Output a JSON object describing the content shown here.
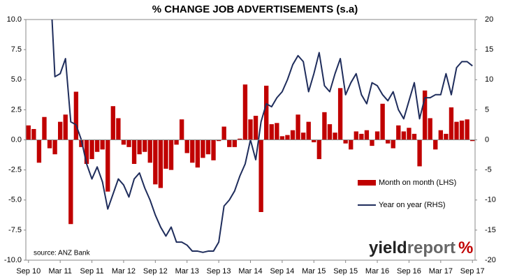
{
  "chart_data": {
    "type": "bar-line",
    "title": "% CHANGE JOB ADVERTISEMENTS (s.a)",
    "source": "source: ANZ Bank",
    "logo": {
      "main": "yield",
      "accent": "report",
      "symbol": "%"
    },
    "categories": [
      "Sep 10",
      null,
      null,
      null,
      null,
      null,
      "Mar 11",
      null,
      null,
      null,
      null,
      null,
      "Sep 11",
      null,
      null,
      null,
      null,
      null,
      "Mar 12",
      null,
      null,
      null,
      null,
      null,
      "Sep 12",
      null,
      null,
      null,
      null,
      null,
      "Mar 13",
      null,
      null,
      null,
      null,
      null,
      "Sep 13",
      null,
      null,
      null,
      null,
      null,
      "Mar 14",
      null,
      null,
      null,
      null,
      null,
      "Sep 14",
      null,
      null,
      null,
      null,
      null,
      "Mar 15",
      null,
      null,
      null,
      null,
      null,
      "Sep 15",
      null,
      null,
      null,
      null,
      null,
      "Mar 16",
      null,
      null,
      null,
      null,
      null,
      "Sep 16",
      null,
      null,
      null,
      null,
      null,
      "Mar 17",
      null,
      null,
      null,
      null,
      null,
      "Sep 17"
    ],
    "series": [
      {
        "name": "Month on month (LHS)",
        "type": "bar",
        "color": "#c00000",
        "values": [
          1.2,
          0.9,
          -1.9,
          1.9,
          -0.7,
          -1.2,
          1.5,
          2.1,
          -7.0,
          4.0,
          -0.6,
          -2.0,
          -1.6,
          -1.0,
          -0.8,
          -4.3,
          2.8,
          1.8,
          -0.4,
          -0.6,
          -2.0,
          -1.2,
          -1.0,
          -1.9,
          -3.7,
          -4.0,
          -2.4,
          -2.5,
          -0.4,
          1.7,
          -1.1,
          -1.9,
          -2.3,
          -1.5,
          -1.2,
          -1.7,
          -0.1,
          1.1,
          -0.6,
          -0.6,
          0.1,
          4.6,
          1.7,
          2.0,
          -6.0,
          4.5,
          1.3,
          1.4,
          0.3,
          0.4,
          0.8,
          2.1,
          0.6,
          1.5,
          -0.2,
          -1.6,
          2.3,
          1.3,
          0.6,
          4.3,
          -0.3,
          -0.8,
          0.7,
          0.5,
          0.8,
          -0.5,
          0.7,
          3.0,
          -0.3,
          -0.7,
          1.2,
          0.7,
          1.0,
          0.5,
          -2.2,
          4.1,
          1.8,
          -0.8,
          0.8,
          0.5,
          2.7,
          1.5,
          1.6,
          1.7,
          -0.1
        ]
      },
      {
        "name": "Year on year (RHS)",
        "type": "line",
        "axis": "y2",
        "color": "#1f2d5c",
        "values": [
          null,
          null,
          null,
          null,
          28,
          10.5,
          11,
          13.5,
          3,
          2.5,
          0,
          -4,
          -6.5,
          -4.5,
          -7,
          -11.5,
          -9,
          -6.5,
          -7.5,
          -9.5,
          -6.5,
          -5.5,
          -8,
          -10,
          -12.5,
          -14.5,
          -16,
          -14.5,
          -17,
          -17,
          -17.5,
          -18.5,
          -18.5,
          -18.7,
          -18.5,
          -18.5,
          -17,
          -11,
          -10,
          -8.5,
          -6,
          -4,
          0,
          -3.3,
          3,
          6,
          5.5,
          7,
          8,
          10,
          12.5,
          14,
          13,
          8,
          11,
          14.5,
          9,
          8,
          11,
          13.5,
          7.5,
          9.5,
          11,
          7.5,
          6,
          9.5,
          9,
          7.5,
          6.5,
          8,
          5,
          3.5,
          6.5,
          9.5,
          3.5,
          7,
          7,
          7.5,
          7.5,
          11,
          7.5,
          12,
          13,
          13,
          12.3
        ]
      }
    ],
    "ylim": [
      -10,
      10
    ],
    "yticks": [
      {
        "value": -10,
        "label": "-10.0"
      },
      -7.5,
      {
        "value": -5,
        "label": "-5.0"
      },
      -2.5,
      {
        "value": 0,
        "label": "0.0"
      },
      2.5,
      {
        "value": 5,
        "label": "5.0"
      },
      7.5,
      {
        "value": 10,
        "label": "10.0"
      }
    ],
    "y2lim": [
      -20,
      20
    ],
    "y2ticks": [
      -20,
      -15,
      -10,
      -5,
      0,
      5,
      10,
      15,
      20
    ],
    "grid": false,
    "legend": "right"
  }
}
